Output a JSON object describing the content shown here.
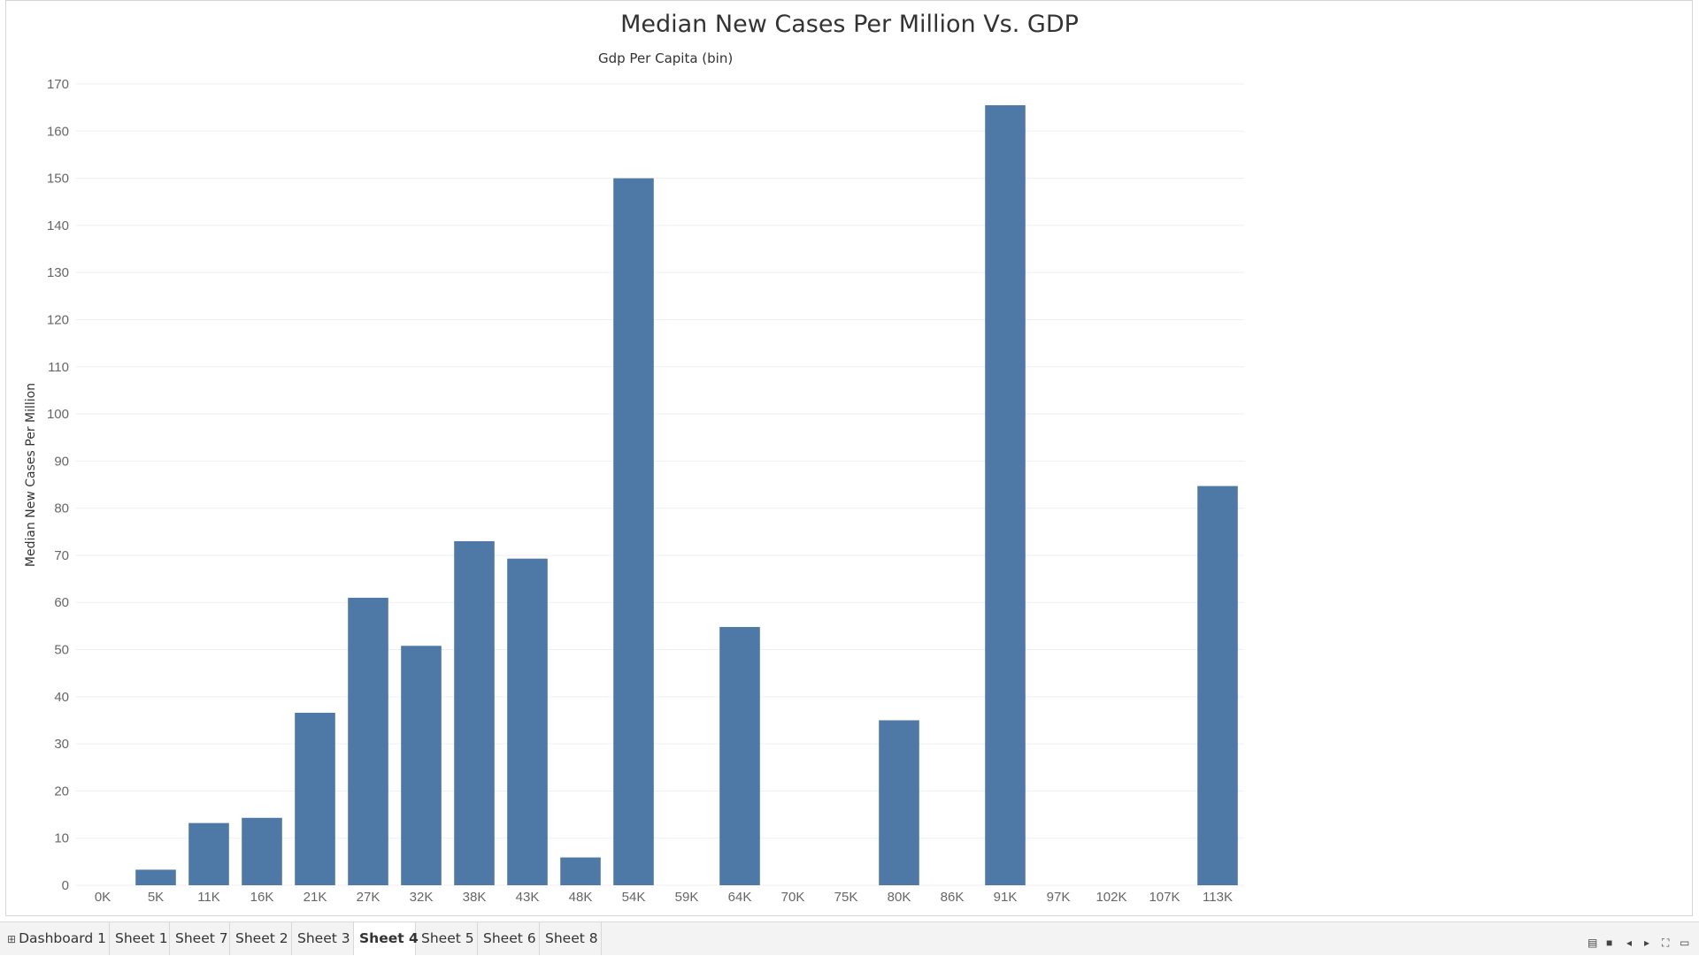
{
  "chart_data": {
    "type": "bar",
    "title": "Median New Cases Per Million Vs. GDP",
    "xlabel": "Gdp Per Capita (bin)",
    "ylabel": "Median New Cases Per Million",
    "ylim": [
      0,
      170
    ],
    "yticks": [
      0,
      10,
      20,
      30,
      40,
      50,
      60,
      70,
      80,
      90,
      100,
      110,
      120,
      130,
      140,
      150,
      160,
      170
    ],
    "categories": [
      "0K",
      "5K",
      "11K",
      "16K",
      "21K",
      "27K",
      "32K",
      "38K",
      "43K",
      "48K",
      "54K",
      "59K",
      "64K",
      "70K",
      "75K",
      "80K",
      "86K",
      "91K",
      "97K",
      "102K",
      "107K",
      "113K"
    ],
    "values": [
      0,
      3.3,
      13.2,
      14.3,
      36.6,
      61.0,
      50.8,
      73.0,
      69.3,
      5.9,
      150.0,
      0,
      54.8,
      0,
      0,
      35.0,
      0,
      165.5,
      0,
      0,
      0,
      84.7
    ],
    "grid": true,
    "bar_color": "#4e79a7"
  },
  "tabs": [
    {
      "label": "Dashboard 1",
      "icon": "grid-icon",
      "active": false
    },
    {
      "label": "Sheet 1",
      "active": false
    },
    {
      "label": "Sheet 7",
      "active": false
    },
    {
      "label": "Sheet 2",
      "active": false
    },
    {
      "label": "Sheet 3",
      "active": false
    },
    {
      "label": "Sheet 4",
      "active": true
    },
    {
      "label": "Sheet 5",
      "active": false
    },
    {
      "label": "Sheet 6",
      "active": false
    },
    {
      "label": "Sheet 8",
      "active": false
    }
  ],
  "controls": [
    "list-view-icon",
    "filmstrip-icon",
    "previous-sheet-icon",
    "next-sheet-icon",
    "fullscreen-icon",
    "present-icon"
  ]
}
